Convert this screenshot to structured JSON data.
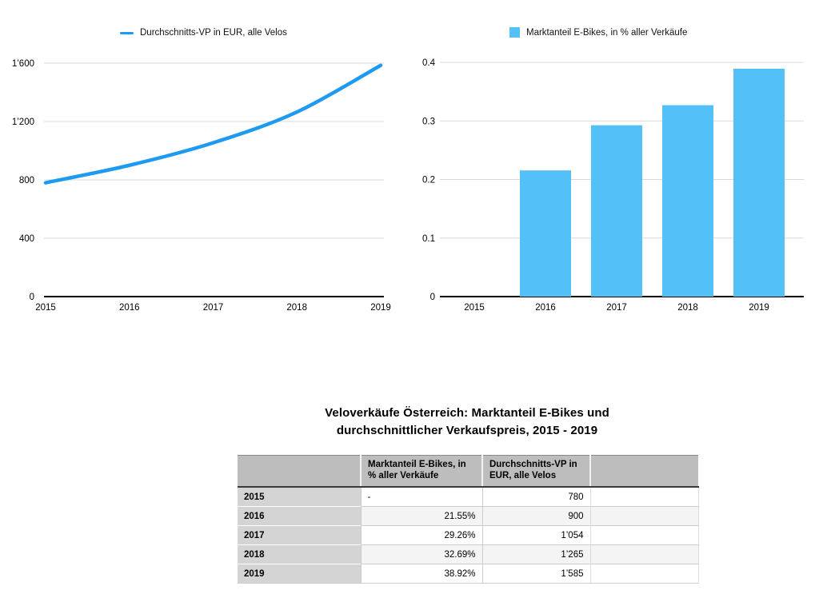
{
  "colors": {
    "line_series": "#1e9bf0",
    "bar_series": "#53c0f8",
    "gridline": "#d9d9d9",
    "axis": "#000000",
    "table_header_bg": "#bdbdbd",
    "table_year_bg": "#d4d4d4",
    "table_stripe_bg": "#f4f4f4"
  },
  "chart_data": [
    {
      "type": "line",
      "title": "",
      "legend": [
        "Durchschnitts-VP in EUR, alle Velos"
      ],
      "legend_position": "top",
      "x": [
        "2015",
        "2016",
        "2017",
        "2018",
        "2019"
      ],
      "series": [
        {
          "name": "Durchschnitts-VP in EUR, alle Velos",
          "values": [
            780,
            900,
            1054,
            1265,
            1585
          ]
        }
      ],
      "ylim": [
        0,
        1600
      ],
      "y_tick_values": [
        0,
        400,
        800,
        1200,
        1600
      ],
      "y_tick_labels": [
        "0",
        "400",
        "800",
        "1’200",
        "1’600"
      ],
      "grid": true,
      "color": "#1e9bf0"
    },
    {
      "type": "bar",
      "title": "",
      "legend": [
        "Marktanteil E-Bikes, in % aller Verkäufe"
      ],
      "legend_position": "top",
      "x": [
        "2015",
        "2016",
        "2017",
        "2018",
        "2019"
      ],
      "series": [
        {
          "name": "Marktanteil E-Bikes, in % aller Verkäufe",
          "values": [
            null,
            0.2155,
            0.2926,
            0.3269,
            0.3892
          ]
        }
      ],
      "ylim": [
        0,
        0.4
      ],
      "y_tick_values": [
        0,
        0.1,
        0.2,
        0.3,
        0.4
      ],
      "y_tick_labels": [
        "0",
        "0.1",
        "0.2",
        "0.3",
        "0.4"
      ],
      "grid": true,
      "color": "#53c0f8"
    },
    {
      "type": "table",
      "title": "Veloverkäufe Österreich: Marktanteil E-Bikes und durchschnittlicher Verkaufspreis, 2015 - 2019",
      "columns": [
        "",
        "Marktanteil E-Bikes, in % aller Verkäufe",
        "Durchschnitts-VP in EUR, alle Velos",
        ""
      ],
      "rows": [
        [
          "2015",
          "-",
          "780",
          ""
        ],
        [
          "2016",
          "21.55%",
          "900",
          ""
        ],
        [
          "2017",
          "29.26%",
          "1’054",
          ""
        ],
        [
          "2018",
          "32.69%",
          "1’265",
          ""
        ],
        [
          "2019",
          "38.92%",
          "1’585",
          ""
        ]
      ]
    }
  ]
}
